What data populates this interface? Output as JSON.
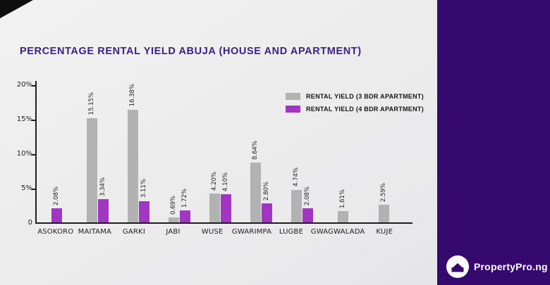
{
  "page": {
    "corner_triangle_color": "#0e0e0e",
    "background_color": "#ececec"
  },
  "brand": {
    "name": "PropertyPro.ng",
    "panel_color": "#36096e",
    "logo_icon": "house-in-circle-icon"
  },
  "chart_data": {
    "type": "bar",
    "title": "PERCENTAGE RENTAL YIELD ABUJA (HOUSE AND APARTMENT)",
    "title_color": "#3a2284",
    "categories": [
      "ASOKORO",
      "MAITAMA",
      "GARKI",
      "JABI",
      "WUSE",
      "GWARIMPA",
      "LUGBE",
      "GWAGWALADA",
      "KUJE"
    ],
    "series": [
      {
        "name": "RENTAL YIELD (3 BDR APARTMENT)",
        "color": "#b2b2b2",
        "values": [
          null,
          15.15,
          16.38,
          0.69,
          4.2,
          8.64,
          4.74,
          1.61,
          2.59
        ]
      },
      {
        "name": "RENTAL YIELD (4 BDR APARTMENT)",
        "color": "#a136c2",
        "values": [
          2.08,
          3.34,
          3.11,
          1.72,
          4.1,
          2.8,
          2.08,
          null,
          null
        ]
      }
    ],
    "value_labels": [
      [
        null,
        "15.15%",
        "16.38%",
        "0.69%",
        "4.20%",
        "8.64%",
        "4.74%",
        "1.61%",
        "2.59%"
      ],
      [
        "2.08%",
        "3.34%",
        "3.11%",
        "1.72%",
        "4.10%",
        "2.80%",
        "2.08%",
        null,
        null
      ]
    ],
    "xlabel": "",
    "ylabel": "",
    "ylim": [
      0,
      20
    ],
    "yticks": [
      "0",
      "5%",
      "10%",
      "15%",
      "20%"
    ],
    "grid": false,
    "legend_position": "top-right",
    "value_label_rotation": 90
  }
}
